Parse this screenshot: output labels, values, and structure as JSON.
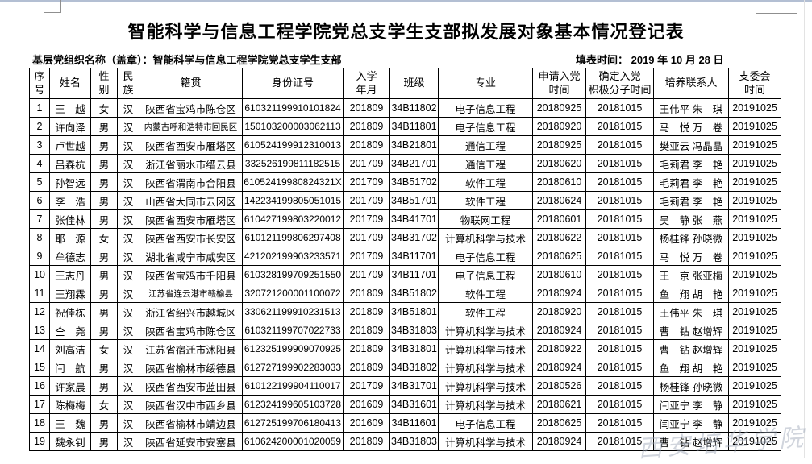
{
  "title": "智能科学与信息工程学院党总支学生支部拟发展对象基本情况登记表",
  "meta": {
    "org_line": "基层党组织名称（盖章）：智能科学与信息工程学院党总支学生支部",
    "fill_time_line": "填表时间： 2019 年 10 月 28 日"
  },
  "table": {
    "columns": [
      "序\n号",
      "姓名",
      "性\n别",
      "民\n族",
      "籍贯",
      "身份证号",
      "入学\n年月",
      "班级",
      "专业",
      "申请入党\n时间",
      "确定入党\n积极分子时间",
      "培养联系人",
      "支委会\n时间"
    ],
    "rows": [
      [
        "1",
        "王　越",
        "女",
        "汉",
        "陕西省宝鸡市陈仓区",
        "610321199910101824",
        "201809",
        "34B11802",
        "电子信息工程",
        "20180925",
        "20181015",
        "王伟平 朱　琪",
        "20191025"
      ],
      [
        "2",
        "许向泽",
        "男",
        "汉",
        "内蒙古呼和浩特市回民区",
        "150103200003062113",
        "201809",
        "34B11801",
        "电子信息工程",
        "20180920",
        "20181015",
        "马　悦 万　卷",
        "20191025"
      ],
      [
        "3",
        "卢世越",
        "男",
        "汉",
        "陕西省西安市雁塔区",
        "610524199912310013",
        "201809",
        "34B21801",
        "通信工程",
        "20180925",
        "20181015",
        "樊亚云 冯晶晶",
        "20191025"
      ],
      [
        "4",
        "吕森杭",
        "男",
        "汉",
        "浙江省丽水市缙云县",
        "332526199811182515",
        "201709",
        "34B21701",
        "通信工程",
        "20180620",
        "20181015",
        "毛莉君 李　艳",
        "20191025"
      ],
      [
        "5",
        "孙智远",
        "男",
        "汉",
        "陕西省渭南市合阳县",
        "61052419980824321X",
        "201709",
        "34B51702",
        "软件工程",
        "20180610",
        "20181015",
        "毛莉君 李　艳",
        "20191025"
      ],
      [
        "6",
        "李　浩",
        "男",
        "汉",
        "山西省大同市云冈区",
        "142234199805051015",
        "201709",
        "34B51701",
        "软件工程",
        "20180624",
        "20181015",
        "毛莉君 李　艳",
        "20191025"
      ],
      [
        "7",
        "张佳林",
        "男",
        "汉",
        "陕西省西安市雁塔区",
        "610427199803220012",
        "201709",
        "34B41701",
        "物联网工程",
        "20180601",
        "20181015",
        "吴　静 张　燕",
        "20191025"
      ],
      [
        "8",
        "耶　源",
        "女",
        "汉",
        "陕西省西安市长安区",
        "610121199806297408",
        "201709",
        "34B31702",
        "计算机科学与技术",
        "20180622",
        "20181015",
        "杨桂锋 孙晓微",
        "20191025"
      ],
      [
        "9",
        "牟德志",
        "男",
        "汉",
        "湖北省咸宁市咸安区",
        "421202199903233571",
        "201709",
        "34B11701",
        "电子信息工程",
        "20180625",
        "20181015",
        "马　悦 万　卷",
        "20191025"
      ],
      [
        "10",
        "王志丹",
        "男",
        "汉",
        "陕西省宝鸡市千阳县",
        "610328199709251550",
        "201709",
        "34B11701",
        "电子信息工程",
        "20180610",
        "20181015",
        "王　京 张亚梅",
        "20191025"
      ],
      [
        "11",
        "王翔霖",
        "男",
        "汉",
        "江苏省连云港市赣榆县",
        "320721200001100072",
        "201809",
        "34B51802",
        "软件工程",
        "20180924",
        "20181015",
        "鱼　翔 胡　艳",
        "20191025"
      ],
      [
        "12",
        "祝佳栋",
        "男",
        "汉",
        "浙江省绍兴市越城区",
        "330621199910231513",
        "201809",
        "34B51801",
        "软件工程",
        "20180920",
        "20181015",
        "王伟平 朱　琪",
        "20191025"
      ],
      [
        "13",
        "仝　尧",
        "男",
        "汉",
        "陕西省宝鸡市陈仓区",
        "610321199707022733",
        "201809",
        "34B31803",
        "计算机科学与技术",
        "20180924",
        "20181015",
        "曹　钻 赵增辉",
        "20191025"
      ],
      [
        "14",
        "刘高洁",
        "女",
        "汉",
        "江苏省宿迁市沭阳县",
        "612325199909070925",
        "201809",
        "34B31801",
        "计算机科学与技术",
        "20180922",
        "20181015",
        "曹　钻 赵增辉",
        "20191025"
      ],
      [
        "15",
        "闫　航",
        "男",
        "汉",
        "陕西省榆林市绥德县",
        "612727199902283033",
        "201809",
        "34B31802",
        "计算机科学与技术",
        "20180924",
        "20181015",
        "鱼　翔 胡　艳",
        "20191025"
      ],
      [
        "16",
        "许家晨",
        "男",
        "汉",
        "陕西省西安市蓝田县",
        "610122199904110017",
        "201709",
        "34B31701",
        "计算机科学与技术",
        "20180526",
        "20181015",
        "杨桂锋 孙晓微",
        "20191025"
      ],
      [
        "17",
        "陈梅梅",
        "女",
        "汉",
        "陕西省汉中市西乡县",
        "612324199605103728",
        "201609",
        "34B31601",
        "计算机科学与技术",
        "20180621",
        "20181015",
        "闫亚宁 李　静",
        "20191025"
      ],
      [
        "18",
        "王　魏",
        "男",
        "汉",
        "陕西省榆林市靖边县",
        "612725199706180413",
        "201609",
        "34B11601",
        "电子信息工程",
        "20180625",
        "20181015",
        "闫亚宁 李　静",
        "20191025"
      ],
      [
        "19",
        "魏永钊",
        "男",
        "汉",
        "陕西省延安市安塞县",
        "610624200001020059",
        "201809",
        "34B31803",
        "计算机科学与技术",
        "20180924",
        "20181015",
        "曹　钻 赵增辉",
        "20191025"
      ]
    ]
  },
  "watermark": {
    "text": "西安培华学院"
  },
  "colors": {
    "border": "#000000",
    "top_edge": "#b3bfd3",
    "crop_mark": "#8f8f8f",
    "watermark": "#9aa4b5"
  }
}
